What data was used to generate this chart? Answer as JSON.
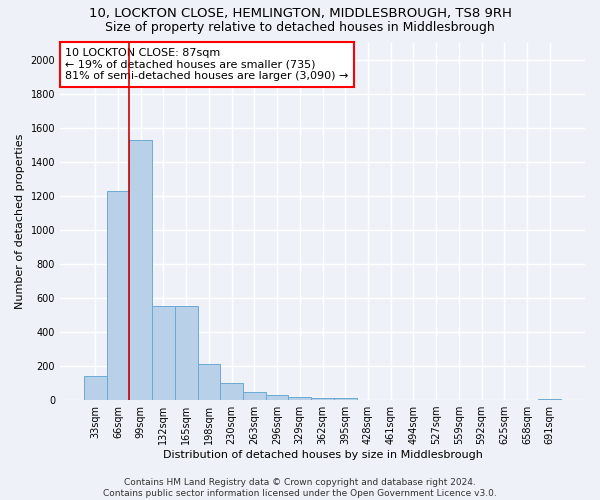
{
  "title": "10, LOCKTON CLOSE, HEMLINGTON, MIDDLESBROUGH, TS8 9RH",
  "subtitle": "Size of property relative to detached houses in Middlesbrough",
  "xlabel": "Distribution of detached houses by size in Middlesbrough",
  "ylabel": "Number of detached properties",
  "categories": [
    "33sqm",
    "66sqm",
    "99sqm",
    "132sqm",
    "165sqm",
    "198sqm",
    "230sqm",
    "263sqm",
    "296sqm",
    "329sqm",
    "362sqm",
    "395sqm",
    "428sqm",
    "461sqm",
    "494sqm",
    "527sqm",
    "559sqm",
    "592sqm",
    "625sqm",
    "658sqm",
    "691sqm"
  ],
  "values": [
    140,
    1225,
    1530,
    550,
    550,
    210,
    100,
    50,
    30,
    20,
    10,
    10,
    0,
    0,
    0,
    0,
    0,
    0,
    0,
    0,
    5
  ],
  "bar_color": "#b8d0e8",
  "bar_edge_color": "#6aaad4",
  "vline_x": 1.5,
  "vline_color": "#cc0000",
  "annotation_box_text": "10 LOCKTON CLOSE: 87sqm\n← 19% of detached houses are smaller (735)\n81% of semi-detached houses are larger (3,090) →",
  "ylim": [
    0,
    2100
  ],
  "yticks": [
    0,
    200,
    400,
    600,
    800,
    1000,
    1200,
    1400,
    1600,
    1800,
    2000
  ],
  "footer_line1": "Contains HM Land Registry data © Crown copyright and database right 2024.",
  "footer_line2": "Contains public sector information licensed under the Open Government Licence v3.0.",
  "bg_color": "#eef2f8",
  "grid_color": "#d8dff0",
  "title_fontsize": 9.5,
  "subtitle_fontsize": 9,
  "axis_label_fontsize": 8,
  "tick_fontsize": 7,
  "annotation_fontsize": 8,
  "footer_fontsize": 6.5
}
